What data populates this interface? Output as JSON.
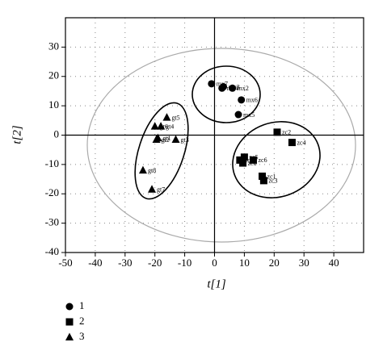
{
  "chart_data": {
    "type": "scatter",
    "xlabel": "t[1]",
    "ylabel": "t[2]",
    "xlim": [
      -50,
      50
    ],
    "ylim": [
      -40,
      40
    ],
    "xticks": [
      -50,
      -40,
      -30,
      -20,
      -10,
      0,
      10,
      20,
      30,
      40
    ],
    "yticks": [
      -40,
      -30,
      -20,
      -10,
      0,
      10,
      20,
      30
    ],
    "grid": true,
    "color": "#000000",
    "series": [
      {
        "name": "1",
        "marker": "circle",
        "labels": [
          "mx7",
          "mx3",
          "mx4",
          "mx2",
          "mx6",
          "mx5"
        ],
        "x": [
          -1,
          3,
          2.5,
          6,
          9,
          8
        ],
        "values": [
          17.5,
          16.5,
          16,
          16,
          12,
          7
        ]
      },
      {
        "name": "2",
        "marker": "square",
        "labels": [
          "zc2",
          "zc4",
          "zc5",
          "zc7",
          "zc6",
          "zc8",
          "zc1",
          "zc3"
        ],
        "x": [
          21,
          26,
          10,
          8.5,
          13,
          9.5,
          16,
          16.5
        ],
        "values": [
          1,
          -2.5,
          -7.5,
          -8.5,
          -8.5,
          -9.5,
          -14,
          -15.5
        ]
      },
      {
        "name": "3",
        "marker": "triangle",
        "labels": [
          "gt5",
          "gt6",
          "gt4",
          "gt1",
          "gt2",
          "gt3",
          "gt8",
          "gt7"
        ],
        "x": [
          -16,
          -20,
          -18,
          -19,
          -19.5,
          -13,
          -24,
          -21
        ],
        "values": [
          6,
          3,
          3,
          -1,
          -1.5,
          -1.5,
          -12,
          -18.5
        ]
      }
    ]
  }
}
